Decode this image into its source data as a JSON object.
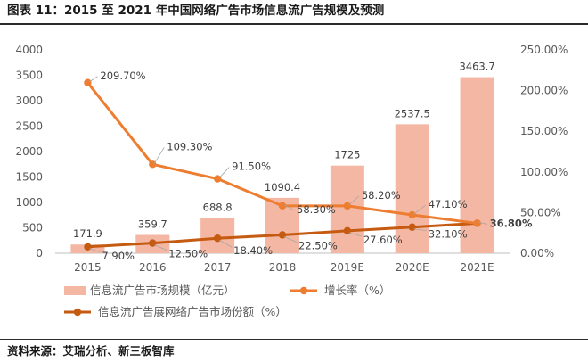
{
  "header": {
    "title": "图表 11：2015 至 2021 年中国网络广告市场信息流广告规模及预测"
  },
  "footer": {
    "source": "资料来源：艾瑞分析、新三板智库"
  },
  "colors": {
    "bar": "#f4b7a4",
    "growth_line": "#ed7d31",
    "share_line": "#c55a11",
    "axis": "#bfbfbf",
    "text": "#595959",
    "label": "#404040"
  },
  "chart_data": {
    "type": "bar",
    "title": "",
    "categories": [
      "2015",
      "2016",
      "2017",
      "2018",
      "2019E",
      "2020E",
      "2021E"
    ],
    "ylim_left": [
      0,
      4000
    ],
    "yticks_left": [
      "0",
      "500",
      "1000",
      "1500",
      "2000",
      "2500",
      "3000",
      "3500",
      "4000"
    ],
    "ylim_right": [
      0,
      250
    ],
    "yticks_right": [
      "0.00%",
      "50.00%",
      "100.00%",
      "150.00%",
      "200.00%",
      "250.00%"
    ],
    "series": [
      {
        "name": "信息流广告市场规模（亿元）",
        "type": "bar",
        "axis": "left",
        "values": [
          171.9,
          359.7,
          688.8,
          1090.4,
          1725,
          2537.5,
          3463.7
        ],
        "labels": [
          "171.9",
          "359.7",
          "688.8",
          "1090.4",
          "1725",
          "2537.5",
          "3463.7"
        ]
      },
      {
        "name": "增长率（%）",
        "type": "line",
        "axis": "right",
        "values": [
          209.7,
          109.3,
          91.5,
          58.3,
          58.2,
          47.1,
          36.8
        ],
        "labels": [
          "209.70%",
          "109.30%",
          "91.50%",
          "58.30%",
          "58.20%",
          "47.10%",
          "36.80%"
        ]
      },
      {
        "name": "信息流广告展网络广告市场份额（%）",
        "type": "line",
        "axis": "right",
        "values": [
          7.9,
          12.5,
          18.4,
          22.5,
          27.6,
          32.1,
          36.8
        ],
        "labels": [
          "7.90%",
          "12.50%",
          "18.40%",
          "22.50%",
          "27.60%",
          "32.10%",
          "36.80%"
        ]
      }
    ],
    "legend_position": "bottom",
    "grid": false
  }
}
